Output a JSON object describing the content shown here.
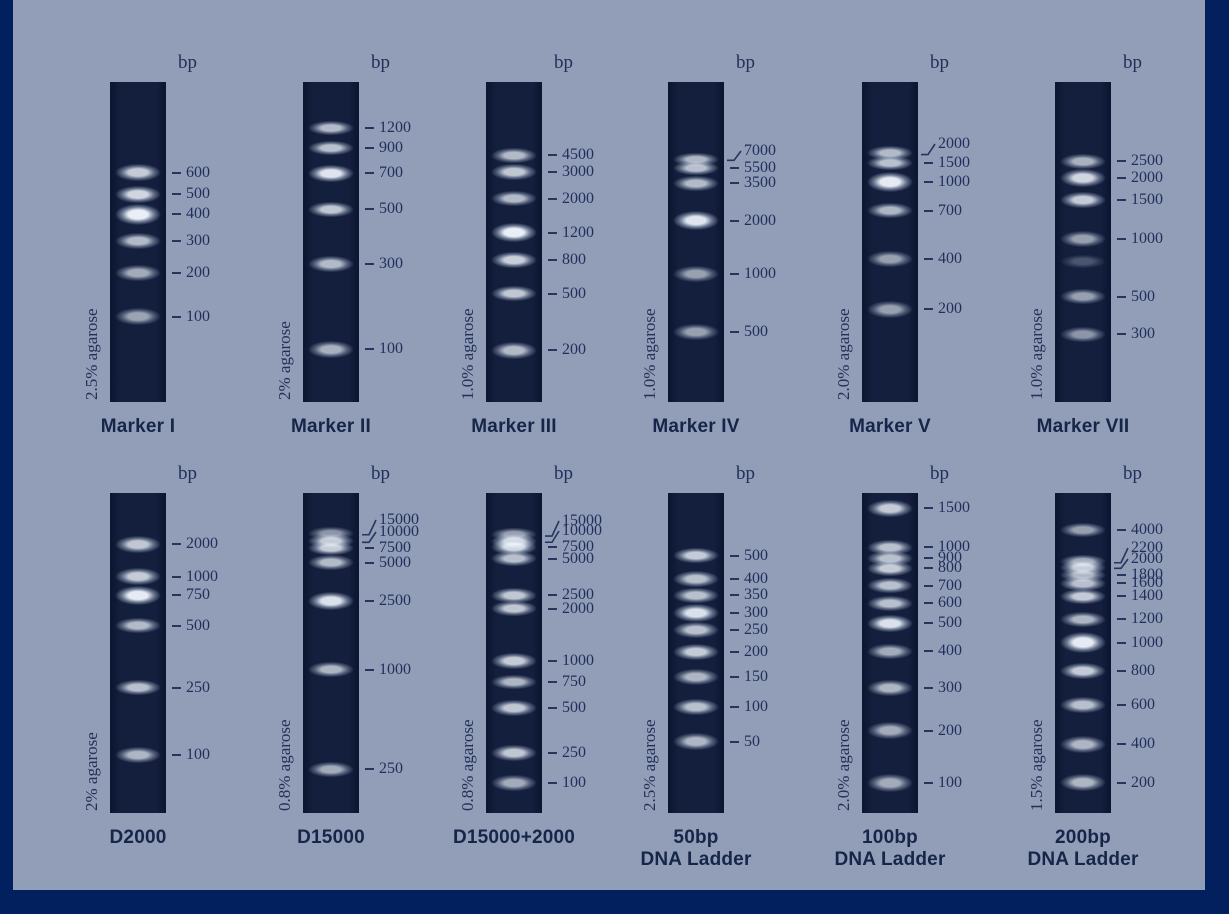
{
  "figure": {
    "colors": {
      "background": "#929db8",
      "frame": "#02205e",
      "lane": "#121d39",
      "text": "#20305a",
      "title_text": "#152649",
      "band_bright": "#f0f6fd"
    }
  },
  "chart_data": {
    "type": "gel_ladders",
    "unit_label": "bp",
    "rows": 2,
    "cols": 6,
    "panels": [
      {
        "title_lines": [
          "Marker I"
        ],
        "agarose": "2.5% agarose",
        "row": 0,
        "col": 0,
        "band_sizes_bp": [
          600,
          500,
          400,
          300,
          200,
          100
        ],
        "bands": [
          {
            "bp": "600",
            "pos": 0.283,
            "i": 0.8,
            "h": 9
          },
          {
            "bp": "500",
            "pos": 0.35,
            "i": 0.85,
            "h": 9
          },
          {
            "bp": "400",
            "pos": 0.413,
            "i": 0.97,
            "h": 13
          },
          {
            "bp": "300",
            "pos": 0.497,
            "i": 0.72,
            "h": 8
          },
          {
            "bp": "200",
            "pos": 0.597,
            "i": 0.65,
            "h": 8
          },
          {
            "bp": "100",
            "pos": 0.733,
            "i": 0.62,
            "h": 9
          }
        ]
      },
      {
        "title_lines": [
          "Marker II"
        ],
        "agarose": "2% agarose",
        "row": 0,
        "col": 1,
        "band_sizes_bp": [
          1200,
          900,
          700,
          500,
          300,
          100
        ],
        "bands": [
          {
            "bp": "1200",
            "pos": 0.145,
            "i": 0.72,
            "h": 6
          },
          {
            "bp": "900",
            "pos": 0.205,
            "i": 0.75,
            "h": 6
          },
          {
            "bp": "700",
            "pos": 0.285,
            "i": 0.92,
            "h": 9
          },
          {
            "bp": "500",
            "pos": 0.397,
            "i": 0.78,
            "h": 7
          },
          {
            "bp": "300",
            "pos": 0.568,
            "i": 0.72,
            "h": 8
          },
          {
            "bp": "100",
            "pos": 0.835,
            "i": 0.68,
            "h": 9
          }
        ]
      },
      {
        "title_lines": [
          "Marker III"
        ],
        "agarose": "1.0% agarose",
        "row": 0,
        "col": 2,
        "band_sizes_bp": [
          4500,
          3000,
          2000,
          1200,
          800,
          500,
          200
        ],
        "bands": [
          {
            "bp": "4500",
            "pos": 0.229,
            "i": 0.72,
            "h": 7
          },
          {
            "bp": "3000",
            "pos": 0.281,
            "i": 0.78,
            "h": 8
          },
          {
            "bp": "2000",
            "pos": 0.365,
            "i": 0.72,
            "h": 7
          },
          {
            "bp": "1200",
            "pos": 0.471,
            "i": 0.97,
            "h": 11
          },
          {
            "bp": "800",
            "pos": 0.556,
            "i": 0.82,
            "h": 8
          },
          {
            "bp": "500",
            "pos": 0.662,
            "i": 0.78,
            "h": 7
          },
          {
            "bp": "200",
            "pos": 0.839,
            "i": 0.72,
            "h": 9
          }
        ]
      },
      {
        "title_lines": [
          "Marker IV"
        ],
        "agarose": "1.0% agarose",
        "row": 0,
        "col": 3,
        "band_sizes_bp": [
          7000,
          5500,
          3500,
          2000,
          1000,
          500
        ],
        "bands": [
          {
            "bp": "7000",
            "pos": 0.241,
            "i": 0.7,
            "h": 5,
            "lpos": 0.215,
            "lead": "angle"
          },
          {
            "bp": "5500",
            "pos": 0.268,
            "i": 0.75,
            "h": 6
          },
          {
            "bp": "3500",
            "pos": 0.316,
            "i": 0.72,
            "h": 7
          },
          {
            "bp": "2000",
            "pos": 0.433,
            "i": 0.92,
            "h": 11
          },
          {
            "bp": "1000",
            "pos": 0.6,
            "i": 0.6,
            "h": 8
          },
          {
            "bp": "500",
            "pos": 0.78,
            "i": 0.6,
            "h": 8
          }
        ]
      },
      {
        "title_lines": [
          "Marker V"
        ],
        "agarose": "2.0% agarose",
        "row": 0,
        "col": 4,
        "band_sizes_bp": [
          2000,
          1500,
          1000,
          700,
          400,
          200
        ],
        "bands": [
          {
            "bp": "2000",
            "pos": 0.223,
            "i": 0.72,
            "h": 6,
            "lpos": 0.193,
            "lead": "angle"
          },
          {
            "bp": "1500",
            "pos": 0.253,
            "i": 0.75,
            "h": 6
          },
          {
            "bp": "1000",
            "pos": 0.313,
            "i": 0.95,
            "h": 12
          },
          {
            "bp": "700",
            "pos": 0.402,
            "i": 0.7,
            "h": 7
          },
          {
            "bp": "400",
            "pos": 0.553,
            "i": 0.6,
            "h": 8
          },
          {
            "bp": "200",
            "pos": 0.71,
            "i": 0.6,
            "h": 9
          }
        ]
      },
      {
        "title_lines": [
          "Marker VII"
        ],
        "agarose": "1.0% agarose",
        "row": 0,
        "col": 5,
        "band_sizes_bp": [
          2500,
          2000,
          1500,
          1000,
          500,
          300
        ],
        "bands": [
          {
            "bp": "2500",
            "pos": 0.247,
            "i": 0.68,
            "h": 7
          },
          {
            "bp": "2000",
            "pos": 0.299,
            "i": 0.85,
            "h": 10
          },
          {
            "bp": "1500",
            "pos": 0.369,
            "i": 0.8,
            "h": 8
          },
          {
            "bp": "1000",
            "pos": 0.49,
            "i": 0.6,
            "h": 8
          },
          {
            "bp": "",
            "pos": 0.56,
            "i": 0.25,
            "h": 5
          },
          {
            "bp": "500",
            "pos": 0.671,
            "i": 0.6,
            "h": 7
          },
          {
            "bp": "300",
            "pos": 0.788,
            "i": 0.55,
            "h": 7
          }
        ]
      },
      {
        "title_lines": [
          "D2000"
        ],
        "agarose": "2% agarose",
        "row": 1,
        "col": 0,
        "band_sizes_bp": [
          2000,
          1000,
          750,
          500,
          250,
          100
        ],
        "bands": [
          {
            "bp": "2000",
            "pos": 0.16,
            "i": 0.78,
            "h": 9
          },
          {
            "bp": "1000",
            "pos": 0.262,
            "i": 0.8,
            "h": 9
          },
          {
            "bp": "750",
            "pos": 0.319,
            "i": 0.95,
            "h": 11
          },
          {
            "bp": "500",
            "pos": 0.415,
            "i": 0.72,
            "h": 7
          },
          {
            "bp": "250",
            "pos": 0.608,
            "i": 0.75,
            "h": 7
          },
          {
            "bp": "100",
            "pos": 0.819,
            "i": 0.7,
            "h": 8
          }
        ]
      },
      {
        "title_lines": [
          "D15000"
        ],
        "agarose": "0.8% agarose",
        "row": 1,
        "col": 1,
        "band_sizes_bp": [
          15000,
          10000,
          7500,
          5000,
          2500,
          1000,
          250
        ],
        "bands": [
          {
            "bp": "15000",
            "pos": 0.127,
            "i": 0.55,
            "h": 5,
            "lpos": 0.084,
            "lead": "angle"
          },
          {
            "bp": "10000",
            "pos": 0.15,
            "i": 0.8,
            "h": 6,
            "lpos": 0.121,
            "lead": "angle"
          },
          {
            "bp": "7500",
            "pos": 0.173,
            "i": 0.8,
            "h": 6
          },
          {
            "bp": "5000",
            "pos": 0.218,
            "i": 0.72,
            "h": 7
          },
          {
            "bp": "2500",
            "pos": 0.337,
            "i": 0.9,
            "h": 10
          },
          {
            "bp": "1000",
            "pos": 0.553,
            "i": 0.7,
            "h": 7
          },
          {
            "bp": "250",
            "pos": 0.863,
            "i": 0.65,
            "h": 7
          }
        ]
      },
      {
        "title_lines": [
          "D15000+2000"
        ],
        "agarose": "0.8% agarose",
        "row": 1,
        "col": 2,
        "band_sizes_bp": [
          15000,
          10000,
          7500,
          5000,
          2500,
          2000,
          1000,
          750,
          500,
          250,
          100
        ],
        "bands": [
          {
            "bp": "15000",
            "pos": 0.131,
            "i": 0.6,
            "h": 5,
            "lpos": 0.087,
            "lead": "angle"
          },
          {
            "bp": "10000",
            "pos": 0.15,
            "i": 0.85,
            "h": 7,
            "lpos": 0.118,
            "lead": "angle"
          },
          {
            "bp": "7500",
            "pos": 0.17,
            "i": 0.85,
            "h": 8
          },
          {
            "bp": "5000",
            "pos": 0.205,
            "i": 0.75,
            "h": 7
          },
          {
            "bp": "2500",
            "pos": 0.319,
            "i": 0.78,
            "h": 7
          },
          {
            "bp": "2000",
            "pos": 0.362,
            "i": 0.78,
            "h": 7
          },
          {
            "bp": "1000",
            "pos": 0.524,
            "i": 0.8,
            "h": 8
          },
          {
            "bp": "750",
            "pos": 0.59,
            "i": 0.7,
            "h": 6
          },
          {
            "bp": "500",
            "pos": 0.673,
            "i": 0.78,
            "h": 8
          },
          {
            "bp": "250",
            "pos": 0.811,
            "i": 0.78,
            "h": 8
          },
          {
            "bp": "100",
            "pos": 0.905,
            "i": 0.65,
            "h": 8
          }
        ]
      },
      {
        "title_lines": [
          "50bp",
          "DNA Ladder"
        ],
        "agarose": "2.5% agarose",
        "row": 1,
        "col": 3,
        "band_sizes_bp": [
          500,
          400,
          350,
          300,
          250,
          200,
          150,
          100,
          50
        ],
        "bands": [
          {
            "bp": "500",
            "pos": 0.196,
            "i": 0.8,
            "h": 7
          },
          {
            "bp": "400",
            "pos": 0.27,
            "i": 0.75,
            "h": 8
          },
          {
            "bp": "350",
            "pos": 0.319,
            "i": 0.75,
            "h": 7
          },
          {
            "bp": "300",
            "pos": 0.376,
            "i": 0.9,
            "h": 10
          },
          {
            "bp": "250",
            "pos": 0.428,
            "i": 0.75,
            "h": 8
          },
          {
            "bp": "200",
            "pos": 0.496,
            "i": 0.8,
            "h": 8
          },
          {
            "bp": "150",
            "pos": 0.576,
            "i": 0.7,
            "h": 8
          },
          {
            "bp": "100",
            "pos": 0.668,
            "i": 0.75,
            "h": 8
          },
          {
            "bp": "50",
            "pos": 0.777,
            "i": 0.7,
            "h": 9
          }
        ]
      },
      {
        "title_lines": [
          "100bp",
          "DNA Ladder"
        ],
        "agarose": "2.0% agarose",
        "row": 1,
        "col": 4,
        "band_sizes_bp": [
          1500,
          1000,
          900,
          800,
          700,
          600,
          500,
          400,
          300,
          200,
          100
        ],
        "bands": [
          {
            "bp": "1500",
            "pos": 0.048,
            "i": 0.8,
            "h": 9
          },
          {
            "bp": "1000",
            "pos": 0.17,
            "i": 0.75,
            "h": 7
          },
          {
            "bp": "900",
            "pos": 0.204,
            "i": 0.75,
            "h": 7
          },
          {
            "bp": "800",
            "pos": 0.235,
            "i": 0.8,
            "h": 7
          },
          {
            "bp": "700",
            "pos": 0.29,
            "i": 0.75,
            "h": 7
          },
          {
            "bp": "600",
            "pos": 0.345,
            "i": 0.75,
            "h": 7
          },
          {
            "bp": "500",
            "pos": 0.407,
            "i": 0.9,
            "h": 9
          },
          {
            "bp": "400",
            "pos": 0.494,
            "i": 0.65,
            "h": 7
          },
          {
            "bp": "300",
            "pos": 0.608,
            "i": 0.7,
            "h": 8
          },
          {
            "bp": "200",
            "pos": 0.743,
            "i": 0.65,
            "h": 9
          },
          {
            "bp": "100",
            "pos": 0.905,
            "i": 0.65,
            "h": 10
          }
        ]
      },
      {
        "title_lines": [
          "200bp",
          "DNA Ladder"
        ],
        "agarose": "1.5% agarose",
        "row": 1,
        "col": 5,
        "band_sizes_bp": [
          4000,
          2200,
          2000,
          1800,
          1600,
          1400,
          1200,
          1000,
          800,
          600,
          400,
          200
        ],
        "bands": [
          {
            "bp": "4000",
            "pos": 0.116,
            "i": 0.6,
            "h": 6
          },
          {
            "bp": "2200",
            "pos": 0.215,
            "i": 0.65,
            "h": 5,
            "lpos": 0.172,
            "lead": "angle"
          },
          {
            "bp": "2000",
            "pos": 0.232,
            "i": 0.8,
            "h": 7,
            "lpos": 0.206,
            "lead": "angle"
          },
          {
            "bp": "1800",
            "pos": 0.256,
            "i": 0.7,
            "h": 6
          },
          {
            "bp": "1600",
            "pos": 0.282,
            "i": 0.75,
            "h": 7
          },
          {
            "bp": "1400",
            "pos": 0.322,
            "i": 0.8,
            "h": 7
          },
          {
            "bp": "1200",
            "pos": 0.395,
            "i": 0.7,
            "h": 7
          },
          {
            "bp": "1000",
            "pos": 0.468,
            "i": 0.95,
            "h": 13
          },
          {
            "bp": "800",
            "pos": 0.556,
            "i": 0.8,
            "h": 8
          },
          {
            "bp": "600",
            "pos": 0.663,
            "i": 0.75,
            "h": 8
          },
          {
            "bp": "400",
            "pos": 0.785,
            "i": 0.7,
            "h": 9
          },
          {
            "bp": "200",
            "pos": 0.905,
            "i": 0.7,
            "h": 9
          }
        ]
      }
    ]
  }
}
